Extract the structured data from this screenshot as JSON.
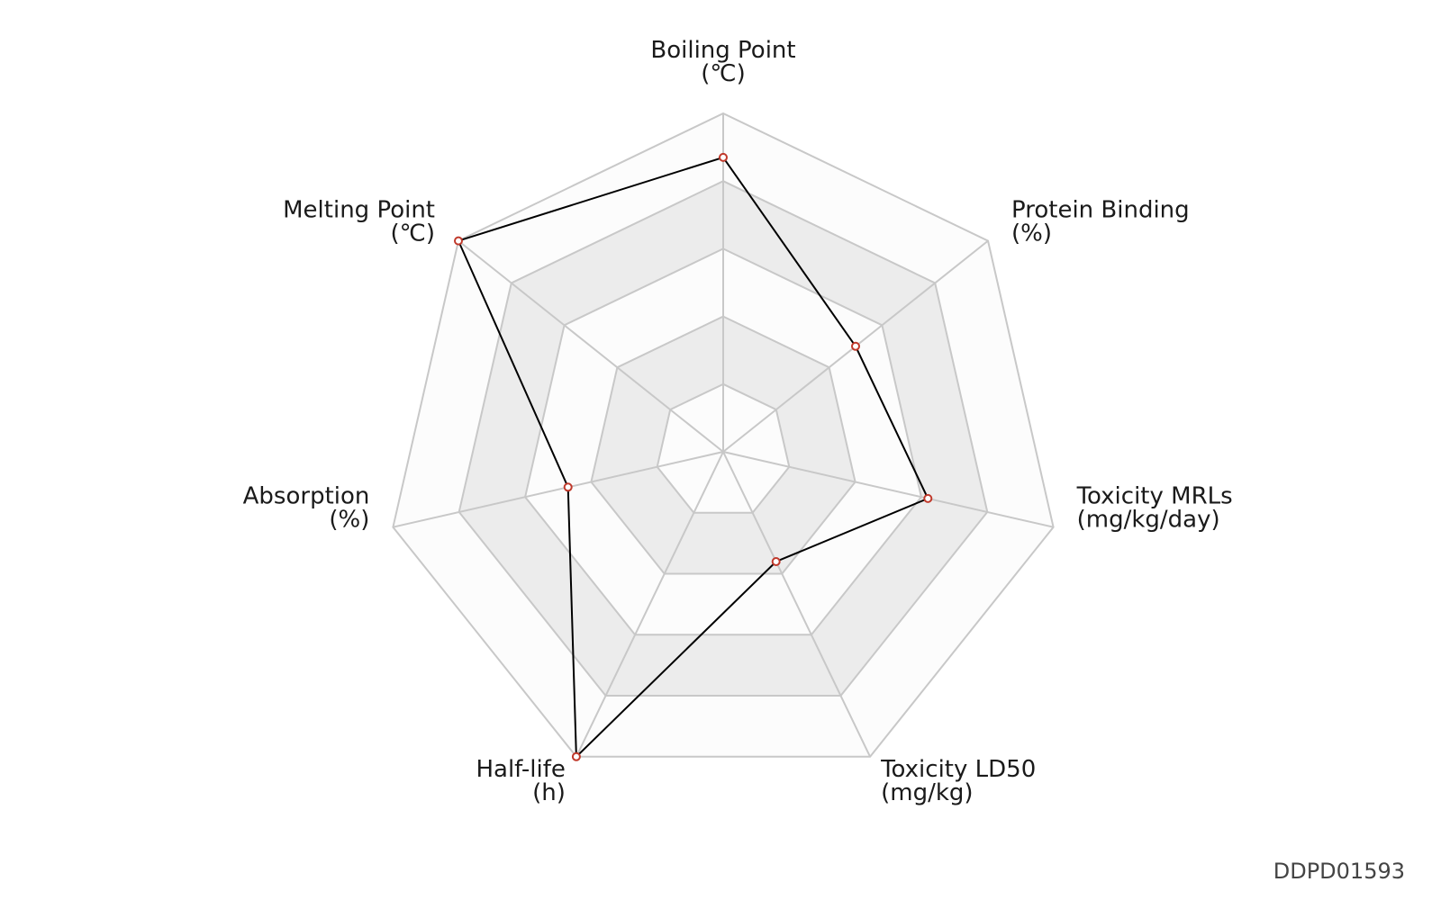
{
  "chart_data": {
    "type": "radar",
    "axes": [
      {
        "name": "Boiling Point",
        "unit": "(℃)"
      },
      {
        "name": "Protein Binding",
        "unit": "(%)"
      },
      {
        "name": "Toxicity MRLs",
        "unit": "(mg/kg/day)"
      },
      {
        "name": "Toxicity LD50",
        "unit": "(mg/kg)"
      },
      {
        "name": "Half-life",
        "unit": "(h)"
      },
      {
        "name": "Absorption",
        "unit": "(%)"
      },
      {
        "name": "Melting Point",
        "unit": "(℃)"
      }
    ],
    "levels": 5,
    "range": [
      0,
      1
    ],
    "series": [
      {
        "values": [
          0.87,
          0.5,
          0.62,
          0.36,
          1.0,
          0.47,
          1.0
        ]
      }
    ],
    "colors": {
      "line": "#000000",
      "marker_stroke": "#c0392b",
      "grid": "#c8c8c8",
      "band_shaded": "#ececec",
      "band_light": "#fcfcfc"
    }
  },
  "identifier": "DDPD01593"
}
